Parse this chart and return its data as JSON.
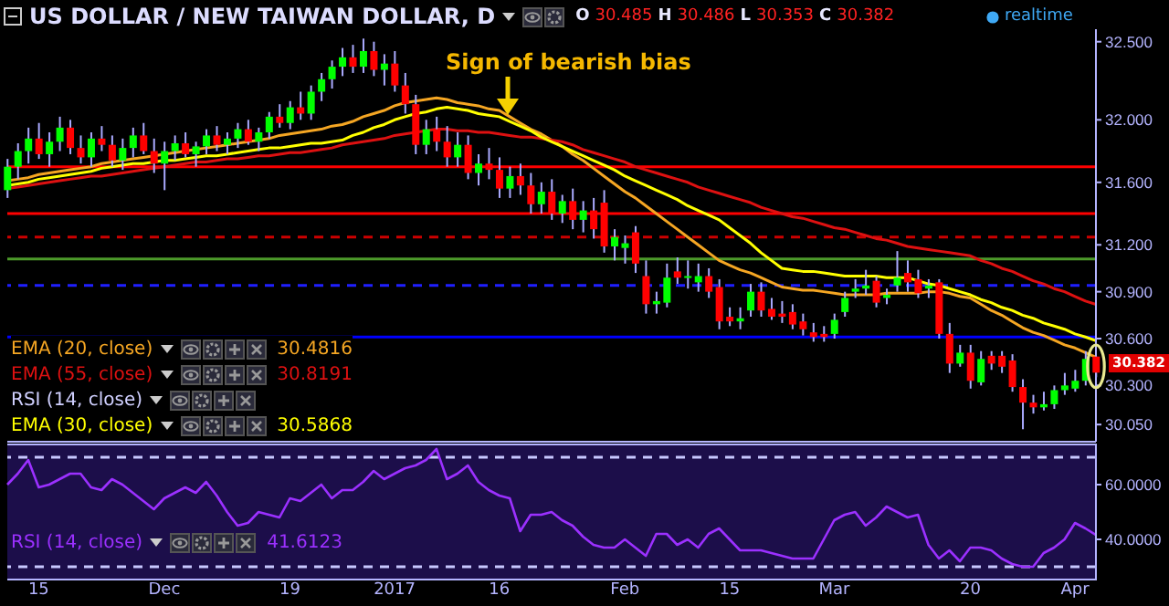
{
  "chart_data": [
    {
      "type": "candlestick",
      "title": "US DOLLAR / NEW TAIWAN DOLLAR, D",
      "categories": [
        null,
        null,
        null,
        null,
        null,
        null,
        null,
        null,
        null,
        null,
        null,
        null,
        null,
        null,
        null,
        null,
        null,
        null,
        null,
        null,
        null,
        null,
        null,
        null,
        null,
        null,
        null,
        null,
        null,
        null,
        null,
        null,
        null,
        null,
        null,
        null,
        null,
        null,
        null,
        null,
        null,
        null,
        null,
        null,
        null,
        null,
        null,
        null,
        null,
        null,
        null,
        null,
        null,
        null,
        null,
        null,
        null,
        null,
        null,
        null,
        null,
        null,
        null,
        null,
        null,
        null,
        null,
        null,
        null,
        null,
        null,
        null,
        null,
        null,
        null,
        null,
        null,
        null,
        null,
        null,
        null,
        null,
        null,
        null,
        null,
        null,
        null,
        null,
        null,
        null,
        null,
        null,
        null,
        null,
        null,
        null,
        null,
        null,
        null,
        null,
        null,
        null,
        null,
        null,
        null
      ],
      "ohlc": [
        [
          31.55,
          31.75,
          31.5,
          31.7
        ],
        [
          31.7,
          31.85,
          31.62,
          31.8
        ],
        [
          31.8,
          31.95,
          31.72,
          31.88
        ],
        [
          31.88,
          31.98,
          31.75,
          31.78
        ],
        [
          31.78,
          31.92,
          31.7,
          31.86
        ],
        [
          31.86,
          32.02,
          31.8,
          31.95
        ],
        [
          31.95,
          32.0,
          31.78,
          31.82
        ],
        [
          31.82,
          31.9,
          31.72,
          31.76
        ],
        [
          31.76,
          31.92,
          31.7,
          31.88
        ],
        [
          31.88,
          31.96,
          31.8,
          31.84
        ],
        [
          31.84,
          31.9,
          31.7,
          31.74
        ],
        [
          31.74,
          31.88,
          31.68,
          31.82
        ],
        [
          31.82,
          31.95,
          31.76,
          31.9
        ],
        [
          31.9,
          31.98,
          31.78,
          31.8
        ],
        [
          31.8,
          31.88,
          31.66,
          31.72
        ],
        [
          31.72,
          31.86,
          31.55,
          31.8
        ],
        [
          31.8,
          31.9,
          31.74,
          31.85
        ],
        [
          31.85,
          31.92,
          31.76,
          31.78
        ],
        [
          31.78,
          31.86,
          31.7,
          31.83
        ],
        [
          31.83,
          31.94,
          31.78,
          31.9
        ],
        [
          31.9,
          31.96,
          31.8,
          31.84
        ],
        [
          31.84,
          31.92,
          31.78,
          31.88
        ],
        [
          31.88,
          31.98,
          31.82,
          31.94
        ],
        [
          31.94,
          32.0,
          31.84,
          31.86
        ],
        [
          31.86,
          31.95,
          31.8,
          31.92
        ],
        [
          31.92,
          32.05,
          31.88,
          32.02
        ],
        [
          32.02,
          32.1,
          31.95,
          31.98
        ],
        [
          31.98,
          32.12,
          31.94,
          32.08
        ],
        [
          32.08,
          32.18,
          32.0,
          32.04
        ],
        [
          32.04,
          32.22,
          32.0,
          32.18
        ],
        [
          32.18,
          32.3,
          32.12,
          32.26
        ],
        [
          32.26,
          32.38,
          32.2,
          32.34
        ],
        [
          32.34,
          32.46,
          32.28,
          32.4
        ],
        [
          32.4,
          32.48,
          32.3,
          32.34
        ],
        [
          32.34,
          32.52,
          32.3,
          32.44
        ],
        [
          32.44,
          32.5,
          32.28,
          32.32
        ],
        [
          32.32,
          32.42,
          32.22,
          32.36
        ],
        [
          32.36,
          32.44,
          32.18,
          32.22
        ],
        [
          32.22,
          32.3,
          32.04,
          32.1
        ],
        [
          32.1,
          32.16,
          31.78,
          31.84
        ],
        [
          31.84,
          32.0,
          31.78,
          31.94
        ],
        [
          31.94,
          32.02,
          31.8,
          31.86
        ],
        [
          31.86,
          31.96,
          31.7,
          31.76
        ],
        [
          31.76,
          31.92,
          31.7,
          31.84
        ],
        [
          31.84,
          31.9,
          31.62,
          31.66
        ],
        [
          31.66,
          31.78,
          31.58,
          31.72
        ],
        [
          31.72,
          31.82,
          31.62,
          31.68
        ],
        [
          31.68,
          31.76,
          31.5,
          31.56
        ],
        [
          31.56,
          31.7,
          31.5,
          31.64
        ],
        [
          31.64,
          31.72,
          31.52,
          31.58
        ],
        [
          31.58,
          31.66,
          31.4,
          31.46
        ],
        [
          31.46,
          31.6,
          31.4,
          31.54
        ],
        [
          31.54,
          31.62,
          31.36,
          31.4
        ],
        [
          31.4,
          31.52,
          31.34,
          31.48
        ],
        [
          31.48,
          31.56,
          31.3,
          31.36
        ],
        [
          31.36,
          31.48,
          31.28,
          31.42
        ],
        [
          31.42,
          31.5,
          31.24,
          31.3
        ],
        [
          31.47,
          31.55,
          31.15,
          31.19
        ],
        [
          31.19,
          31.3,
          31.1,
          31.25
        ],
        [
          31.18,
          31.26,
          31.08,
          31.21
        ],
        [
          31.28,
          31.32,
          31.02,
          31.08
        ],
        [
          31.0,
          31.1,
          30.76,
          30.82
        ],
        [
          30.82,
          30.9,
          30.76,
          30.84
        ],
        [
          30.83,
          31.08,
          30.8,
          30.99
        ],
        [
          31.03,
          31.12,
          30.95,
          30.99
        ],
        [
          30.99,
          31.1,
          30.92,
          31.0
        ],
        [
          30.96,
          31.08,
          30.9,
          31.0
        ],
        [
          31.0,
          31.05,
          30.86,
          30.9
        ],
        [
          30.93,
          30.98,
          30.66,
          30.71
        ],
        [
          30.74,
          30.8,
          30.68,
          30.71
        ],
        [
          30.71,
          30.8,
          30.66,
          30.73
        ],
        [
          30.78,
          30.95,
          30.74,
          30.9
        ],
        [
          30.9,
          30.96,
          30.74,
          30.78
        ],
        [
          30.79,
          30.86,
          30.72,
          30.74
        ],
        [
          30.76,
          30.84,
          30.7,
          30.74
        ],
        [
          30.77,
          30.82,
          30.66,
          30.69
        ],
        [
          30.71,
          30.76,
          30.62,
          30.66
        ],
        [
          30.64,
          30.7,
          30.58,
          30.61
        ],
        [
          30.63,
          30.68,
          30.58,
          30.61
        ],
        [
          30.63,
          30.76,
          30.6,
          30.72
        ],
        [
          30.77,
          30.9,
          30.74,
          30.86
        ],
        [
          30.9,
          30.98,
          30.86,
          30.92
        ],
        [
          30.92,
          31.04,
          30.88,
          30.94
        ],
        [
          30.97,
          31.0,
          30.8,
          30.83
        ],
        [
          30.86,
          30.92,
          30.82,
          30.88
        ],
        [
          30.94,
          31.16,
          30.9,
          30.99
        ],
        [
          31.02,
          31.1,
          30.9,
          30.96
        ],
        [
          30.98,
          31.04,
          30.86,
          30.89
        ],
        [
          30.92,
          30.98,
          30.86,
          30.94
        ],
        [
          30.96,
          30.98,
          30.6,
          30.63
        ],
        [
          30.63,
          30.7,
          30.38,
          30.44
        ],
        [
          30.44,
          30.56,
          30.42,
          30.51
        ],
        [
          30.51,
          30.56,
          30.28,
          30.33
        ],
        [
          30.32,
          30.52,
          30.3,
          30.47
        ],
        [
          30.49,
          30.52,
          30.4,
          30.44
        ],
        [
          30.49,
          30.52,
          30.38,
          30.42
        ],
        [
          30.46,
          30.5,
          30.26,
          30.29
        ],
        [
          30.29,
          30.34,
          30.02,
          30.19
        ],
        [
          30.19,
          30.24,
          30.12,
          30.16
        ],
        [
          30.16,
          30.26,
          30.14,
          30.18
        ],
        [
          30.18,
          30.3,
          30.15,
          30.27
        ],
        [
          30.27,
          30.38,
          30.24,
          30.3
        ],
        [
          30.28,
          30.4,
          30.26,
          30.33
        ],
        [
          30.33,
          30.52,
          30.3,
          30.47
        ],
        [
          30.485,
          30.486,
          30.353,
          30.382
        ]
      ],
      "colors": [
        "#00ff00",
        "#00ff00",
        "#00ff00",
        "#ff0000",
        "#00ff00",
        "#00ff00",
        "#ff0000",
        "#ff0000",
        "#00ff00",
        "#ff0000",
        "#ff0000",
        "#00ff00",
        "#00ff00",
        "#ff0000",
        "#ff0000",
        "#00ff00",
        "#00ff00",
        "#ff0000",
        "#00ff00",
        "#00ff00",
        "#ff0000",
        "#00ff00",
        "#00ff00",
        "#ff0000",
        "#00ff00",
        "#00ff00",
        "#ff0000",
        "#00ff00",
        "#ff0000",
        "#00ff00",
        "#00ff00",
        "#00ff00",
        "#00ff00",
        "#ff0000",
        "#00ff00",
        "#ff0000",
        "#00ff00",
        "#ff0000",
        "#ff0000",
        "#ff0000",
        "#00ff00",
        "#ff0000",
        "#ff0000",
        "#00ff00",
        "#ff0000",
        "#00ff00",
        "#ff0000",
        "#ff0000",
        "#00ff00",
        "#ff0000",
        "#ff0000",
        "#00ff00",
        "#ff0000",
        "#00ff00",
        "#ff0000",
        "#00ff00",
        "#ff0000",
        "#ff0000",
        "#00ff00",
        "#00ff00",
        "#ff0000",
        "#ff0000",
        "#00ff00",
        "#00ff00",
        "#ff0000",
        "#00ff00",
        "#00ff00",
        "#ff0000",
        "#ff0000",
        "#ff0000",
        "#00ff00",
        "#00ff00",
        "#ff0000",
        "#ff0000",
        "#ff0000",
        "#ff0000",
        "#ff0000",
        "#ff0000",
        "#ff0000",
        "#00ff00",
        "#00ff00",
        "#00ff00",
        "#00ff00",
        "#ff0000",
        "#00ff00",
        "#00ff00",
        "#ff0000",
        "#ff0000",
        "#00ff00",
        "#ff0000",
        "#ff0000",
        "#00ff00",
        "#ff0000",
        "#00ff00",
        "#ff0000",
        "#ff0000",
        "#ff0000",
        "#ff0000",
        "#ff0000",
        "#00ff00",
        "#00ff00",
        "#00ff00",
        "#00ff00",
        "#00ff00",
        "#ff0000"
      ],
      "series": [
        {
          "name": "EMA (20, close)",
          "type": "line",
          "color": "#f5a623",
          "values": [
            31.61,
            31.62,
            31.63,
            31.65,
            31.66,
            31.67,
            31.68,
            31.69,
            31.7,
            31.72,
            31.73,
            31.74,
            31.75,
            31.76,
            31.77,
            31.78,
            31.79,
            31.8,
            31.81,
            31.82,
            31.83,
            31.84,
            31.85,
            31.86,
            31.87,
            31.88,
            31.9,
            31.91,
            31.92,
            31.93,
            31.94,
            31.96,
            31.97,
            31.99,
            32.02,
            32.04,
            32.06,
            32.09,
            32.11,
            32.12,
            32.13,
            32.14,
            32.13,
            32.11,
            32.1,
            32.09,
            32.07,
            32.06,
            32.02,
            31.98,
            31.94,
            31.91,
            31.87,
            31.83,
            31.78,
            31.74,
            31.69,
            31.64,
            31.59,
            31.54,
            31.5,
            31.45,
            31.4,
            31.35,
            31.3,
            31.25,
            31.2,
            31.15,
            31.1,
            31.07,
            31.04,
            31.02,
            30.99,
            30.96,
            30.93,
            30.92,
            30.91,
            30.91,
            30.9,
            30.89,
            30.88,
            30.88,
            30.88,
            30.88,
            30.89,
            30.89,
            30.89,
            30.89,
            30.9,
            30.9,
            30.89,
            30.87,
            30.86,
            30.82,
            30.78,
            30.75,
            30.71,
            30.67,
            30.64,
            30.62,
            30.59,
            30.56,
            30.54,
            30.51,
            30.4816
          ]
        },
        {
          "name": "EMA (55, close)",
          "type": "line",
          "color": "#dd1111",
          "values": [
            31.56,
            31.57,
            31.58,
            31.59,
            31.6,
            31.61,
            31.62,
            31.63,
            31.64,
            31.64,
            31.65,
            31.66,
            31.67,
            31.68,
            31.69,
            31.7,
            31.71,
            31.72,
            31.73,
            31.73,
            31.74,
            31.75,
            31.75,
            31.76,
            31.77,
            31.77,
            31.78,
            31.79,
            31.79,
            31.8,
            31.81,
            31.82,
            31.84,
            31.85,
            31.86,
            31.87,
            31.88,
            31.9,
            31.91,
            31.92,
            31.93,
            31.94,
            31.94,
            31.93,
            31.93,
            31.92,
            31.92,
            31.91,
            31.9,
            31.89,
            31.89,
            31.88,
            31.87,
            31.86,
            31.84,
            31.81,
            31.79,
            31.77,
            31.75,
            31.73,
            31.7,
            31.68,
            31.66,
            31.64,
            31.62,
            31.6,
            31.57,
            31.55,
            31.53,
            31.51,
            31.49,
            31.47,
            31.44,
            31.42,
            31.4,
            31.38,
            31.37,
            31.35,
            31.33,
            31.31,
            31.3,
            31.28,
            31.26,
            31.24,
            31.23,
            31.21,
            31.19,
            31.18,
            31.17,
            31.16,
            31.15,
            31.14,
            31.13,
            31.1,
            31.08,
            31.05,
            31.03,
            31.0,
            30.97,
            30.95,
            30.92,
            30.9,
            30.87,
            30.84,
            30.8191
          ]
        },
        {
          "name": "EMA (30, close)",
          "type": "line",
          "color": "#ffff00",
          "values": [
            31.58,
            31.59,
            31.6,
            31.62,
            31.63,
            31.64,
            31.65,
            31.66,
            31.67,
            31.69,
            31.7,
            31.71,
            31.72,
            31.72,
            31.73,
            31.74,
            31.74,
            31.75,
            31.76,
            31.77,
            31.77,
            31.78,
            31.79,
            31.8,
            31.81,
            31.82,
            31.82,
            31.83,
            31.84,
            31.85,
            31.85,
            31.86,
            31.87,
            31.9,
            31.92,
            31.95,
            31.97,
            32.0,
            32.02,
            32.04,
            32.05,
            32.07,
            32.08,
            32.07,
            32.06,
            32.04,
            32.03,
            32.02,
            31.99,
            31.96,
            31.93,
            31.89,
            31.86,
            31.83,
            31.8,
            31.77,
            31.74,
            31.71,
            31.68,
            31.64,
            31.61,
            31.58,
            31.55,
            31.52,
            31.49,
            31.45,
            31.42,
            31.39,
            31.36,
            31.31,
            31.26,
            31.21,
            31.15,
            31.1,
            31.05,
            31.04,
            31.03,
            31.03,
            31.02,
            31.01,
            31.0,
            31.0,
            31.0,
            31.0,
            30.99,
            30.99,
            30.99,
            30.97,
            30.95,
            30.94,
            30.92,
            30.9,
            30.88,
            30.85,
            30.83,
            30.8,
            30.78,
            30.75,
            30.73,
            30.7,
            30.68,
            30.66,
            30.63,
            30.61,
            30.5868
          ]
        }
      ],
      "ylim": [
        29.94,
        32.58
      ],
      "yticks": [
        {
          "value": 32.5,
          "label": "32.500"
        },
        {
          "value": 32,
          "label": "32.000"
        },
        {
          "value": 31.6,
          "label": "31.600"
        },
        {
          "value": 31.2,
          "label": "31.200"
        },
        {
          "value": 30.9,
          "label": "30.900"
        },
        {
          "value": 30.6,
          "label": "30.600"
        },
        {
          "value": 30.3,
          "label": "30.300"
        },
        {
          "value": 30.05,
          "label": "30.050"
        }
      ],
      "tick_labels": "y",
      "legend": "bottom left",
      "ref_lines": [
        {
          "axis": "y",
          "value": 31.7,
          "color": "#ff0000"
        },
        {
          "axis": "y",
          "value": 31.4,
          "color": "#ff0000"
        },
        {
          "axis": "y",
          "value": 31.25,
          "color": "#cc0000",
          "line_style": "dashed"
        },
        {
          "axis": "y",
          "value": 31.11,
          "color": "#4c9a2a"
        },
        {
          "axis": "y",
          "value": 30.94,
          "color": "#1f1fff",
          "line_style": "dashed"
        },
        {
          "axis": "y",
          "value": 30.61,
          "color": "#0000ff"
        }
      ],
      "annotations": [
        "O 30.485 H 30.486 L 30.353 C 30.382",
        "realtime",
        "Sign of bearish bias",
        "30.382",
        "30.4816",
        "30.8191",
        "30.5868",
        "RSI (14, close)"
      ]
    },
    {
      "type": "line",
      "categories": [
        null,
        null,
        null,
        "15",
        null,
        null,
        null,
        null,
        null,
        null,
        null,
        null,
        null,
        null,
        null,
        "Dec",
        null,
        null,
        null,
        null,
        null,
        null,
        null,
        null,
        null,
        null,
        null,
        "19",
        null,
        null,
        null,
        null,
        null,
        null,
        null,
        null,
        null,
        "2017",
        null,
        null,
        null,
        null,
        null,
        null,
        null,
        null,
        null,
        "16",
        null,
        null,
        null,
        null,
        null,
        null,
        null,
        null,
        null,
        null,
        null,
        "Feb",
        null,
        null,
        null,
        null,
        null,
        null,
        null,
        null,
        null,
        "15",
        null,
        null,
        null,
        null,
        null,
        null,
        null,
        null,
        null,
        "Mar",
        null,
        null,
        null,
        null,
        null,
        null,
        null,
        null,
        null,
        null,
        null,
        null,
        "20",
        null,
        null,
        null,
        null,
        null,
        null,
        null,
        null,
        null,
        "Apr",
        null,
        null
      ],
      "series": [
        {
          "name": "RSI (14, close)",
          "color": "#9b30ff",
          "values": [
            60,
            64,
            69,
            59,
            60,
            62,
            64,
            64,
            59,
            58,
            62,
            60,
            57,
            54,
            51,
            55,
            57,
            59,
            57,
            61,
            56,
            50,
            45,
            46,
            50,
            49,
            48,
            55,
            54,
            57,
            60,
            55,
            58,
            58,
            61,
            65,
            62,
            64,
            66,
            67,
            69,
            73,
            62,
            64,
            67,
            61,
            58,
            56,
            55,
            43,
            49,
            49,
            50,
            47,
            45,
            41,
            38,
            37,
            37,
            40,
            37,
            34,
            42,
            42,
            38,
            40,
            37,
            42,
            44,
            40,
            36,
            36,
            36,
            35,
            34,
            33,
            33,
            33,
            40,
            47,
            49,
            50,
            45,
            48,
            52,
            50,
            48,
            49,
            38,
            33,
            36,
            32,
            37,
            37,
            36,
            33,
            31,
            30,
            30,
            35,
            37,
            40,
            46,
            44,
            41.6123
          ]
        }
      ],
      "ylim": [
        25,
        75
      ],
      "yticks": [
        {
          "value": 40,
          "label": "40.0000"
        },
        {
          "value": 60,
          "label": "60.0000"
        }
      ],
      "legend": "bottom left",
      "ref_lines": [
        {
          "axis": "y",
          "value": 70,
          "color": "#c8c8ff",
          "line_style": "dashed"
        },
        {
          "axis": "y",
          "value": 30,
          "color": "#c8c8ff",
          "line_style": "dashed"
        }
      ],
      "annotations": [
        "41.6123"
      ]
    }
  ]
}
